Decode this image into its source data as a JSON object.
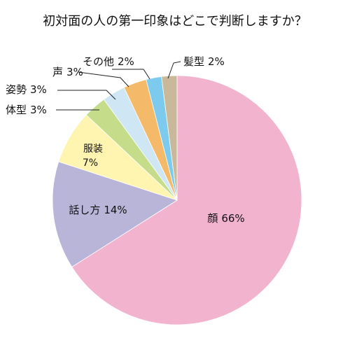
{
  "chart_data": {
    "type": "pie",
    "title": "初対面の人の第一印象はどこで判断しますか？",
    "categories": [
      "顔",
      "話し方",
      "服装",
      "体型",
      "姿勢",
      "声",
      "その他",
      "髪型"
    ],
    "values": [
      66,
      14,
      7,
      3,
      3,
      3,
      2,
      2
    ],
    "value_labels": [
      "66%",
      "14%",
      "7%",
      "3%",
      "3%",
      "3%",
      "2%",
      "2%"
    ],
    "colors": [
      "#f2b3cf",
      "#b9b5d8",
      "#fff4b0",
      "#c5dc8a",
      "#cfe6f5",
      "#f5b96a",
      "#7ccbef",
      "#c9b99a"
    ]
  }
}
